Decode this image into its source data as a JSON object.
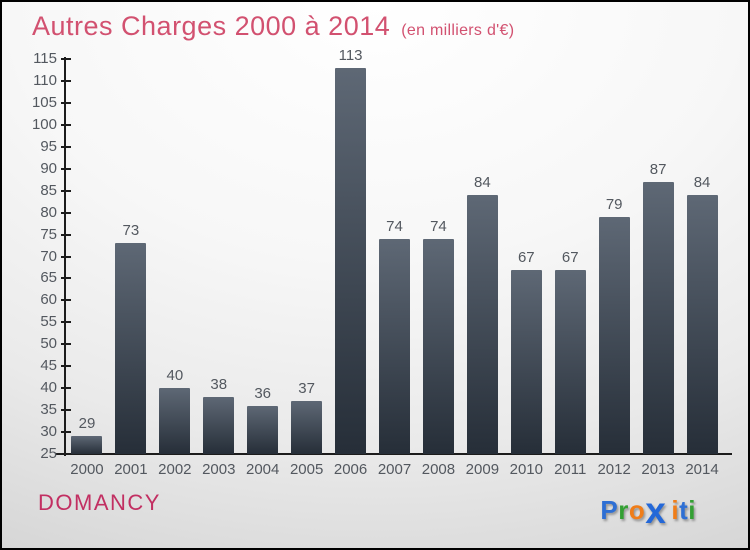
{
  "title": {
    "text": "Autres Charges 2000 à 2014",
    "subtitle": "(en milliers d'€)"
  },
  "chart_data": {
    "type": "bar",
    "title": "Autres Charges 2000 à 2014",
    "subtitle": "(en milliers d'€)",
    "categories": [
      "2000",
      "2001",
      "2002",
      "2003",
      "2004",
      "2005",
      "2006",
      "2007",
      "2008",
      "2009",
      "2010",
      "2011",
      "2012",
      "2013",
      "2014"
    ],
    "values": [
      29,
      73,
      40,
      38,
      36,
      37,
      113,
      74,
      74,
      84,
      67,
      67,
      79,
      87,
      84
    ],
    "value_labels_shown": true,
    "ylim": [
      25,
      115
    ],
    "ytick_step": 5,
    "ytick_labels": [
      25,
      30,
      35,
      40,
      45,
      50,
      55,
      60,
      65,
      70,
      75,
      80,
      85,
      90,
      95,
      100,
      105,
      110,
      115
    ],
    "grid": false,
    "legend": false,
    "bar_gradient_top": "#5e6875",
    "bar_gradient_bottom": "#262e38",
    "axis_color": "#1c1c1c",
    "label_color": "#53585f"
  },
  "footer": {
    "location": "DOMANCY",
    "logo": {
      "name": "Proxiti",
      "letters": [
        {
          "ch": "P",
          "color": "#2e6fd4",
          "big": false
        },
        {
          "ch": "r",
          "color": "#33a033",
          "big": false
        },
        {
          "ch": "o",
          "color": "#f07d18",
          "big": false
        },
        {
          "ch": "x",
          "color": "#2468d8",
          "big": true
        },
        {
          "ch": "i",
          "color": "#f07d18",
          "big": false
        },
        {
          "ch": "t",
          "color": "#2e6fd4",
          "big": false
        },
        {
          "ch": "i",
          "color": "#33a033",
          "big": false
        }
      ]
    }
  },
  "colors": {
    "title": "#d25170",
    "location": "#c22f62",
    "background_top": "#ffffff",
    "background_bottom": "#c6c6c6"
  }
}
